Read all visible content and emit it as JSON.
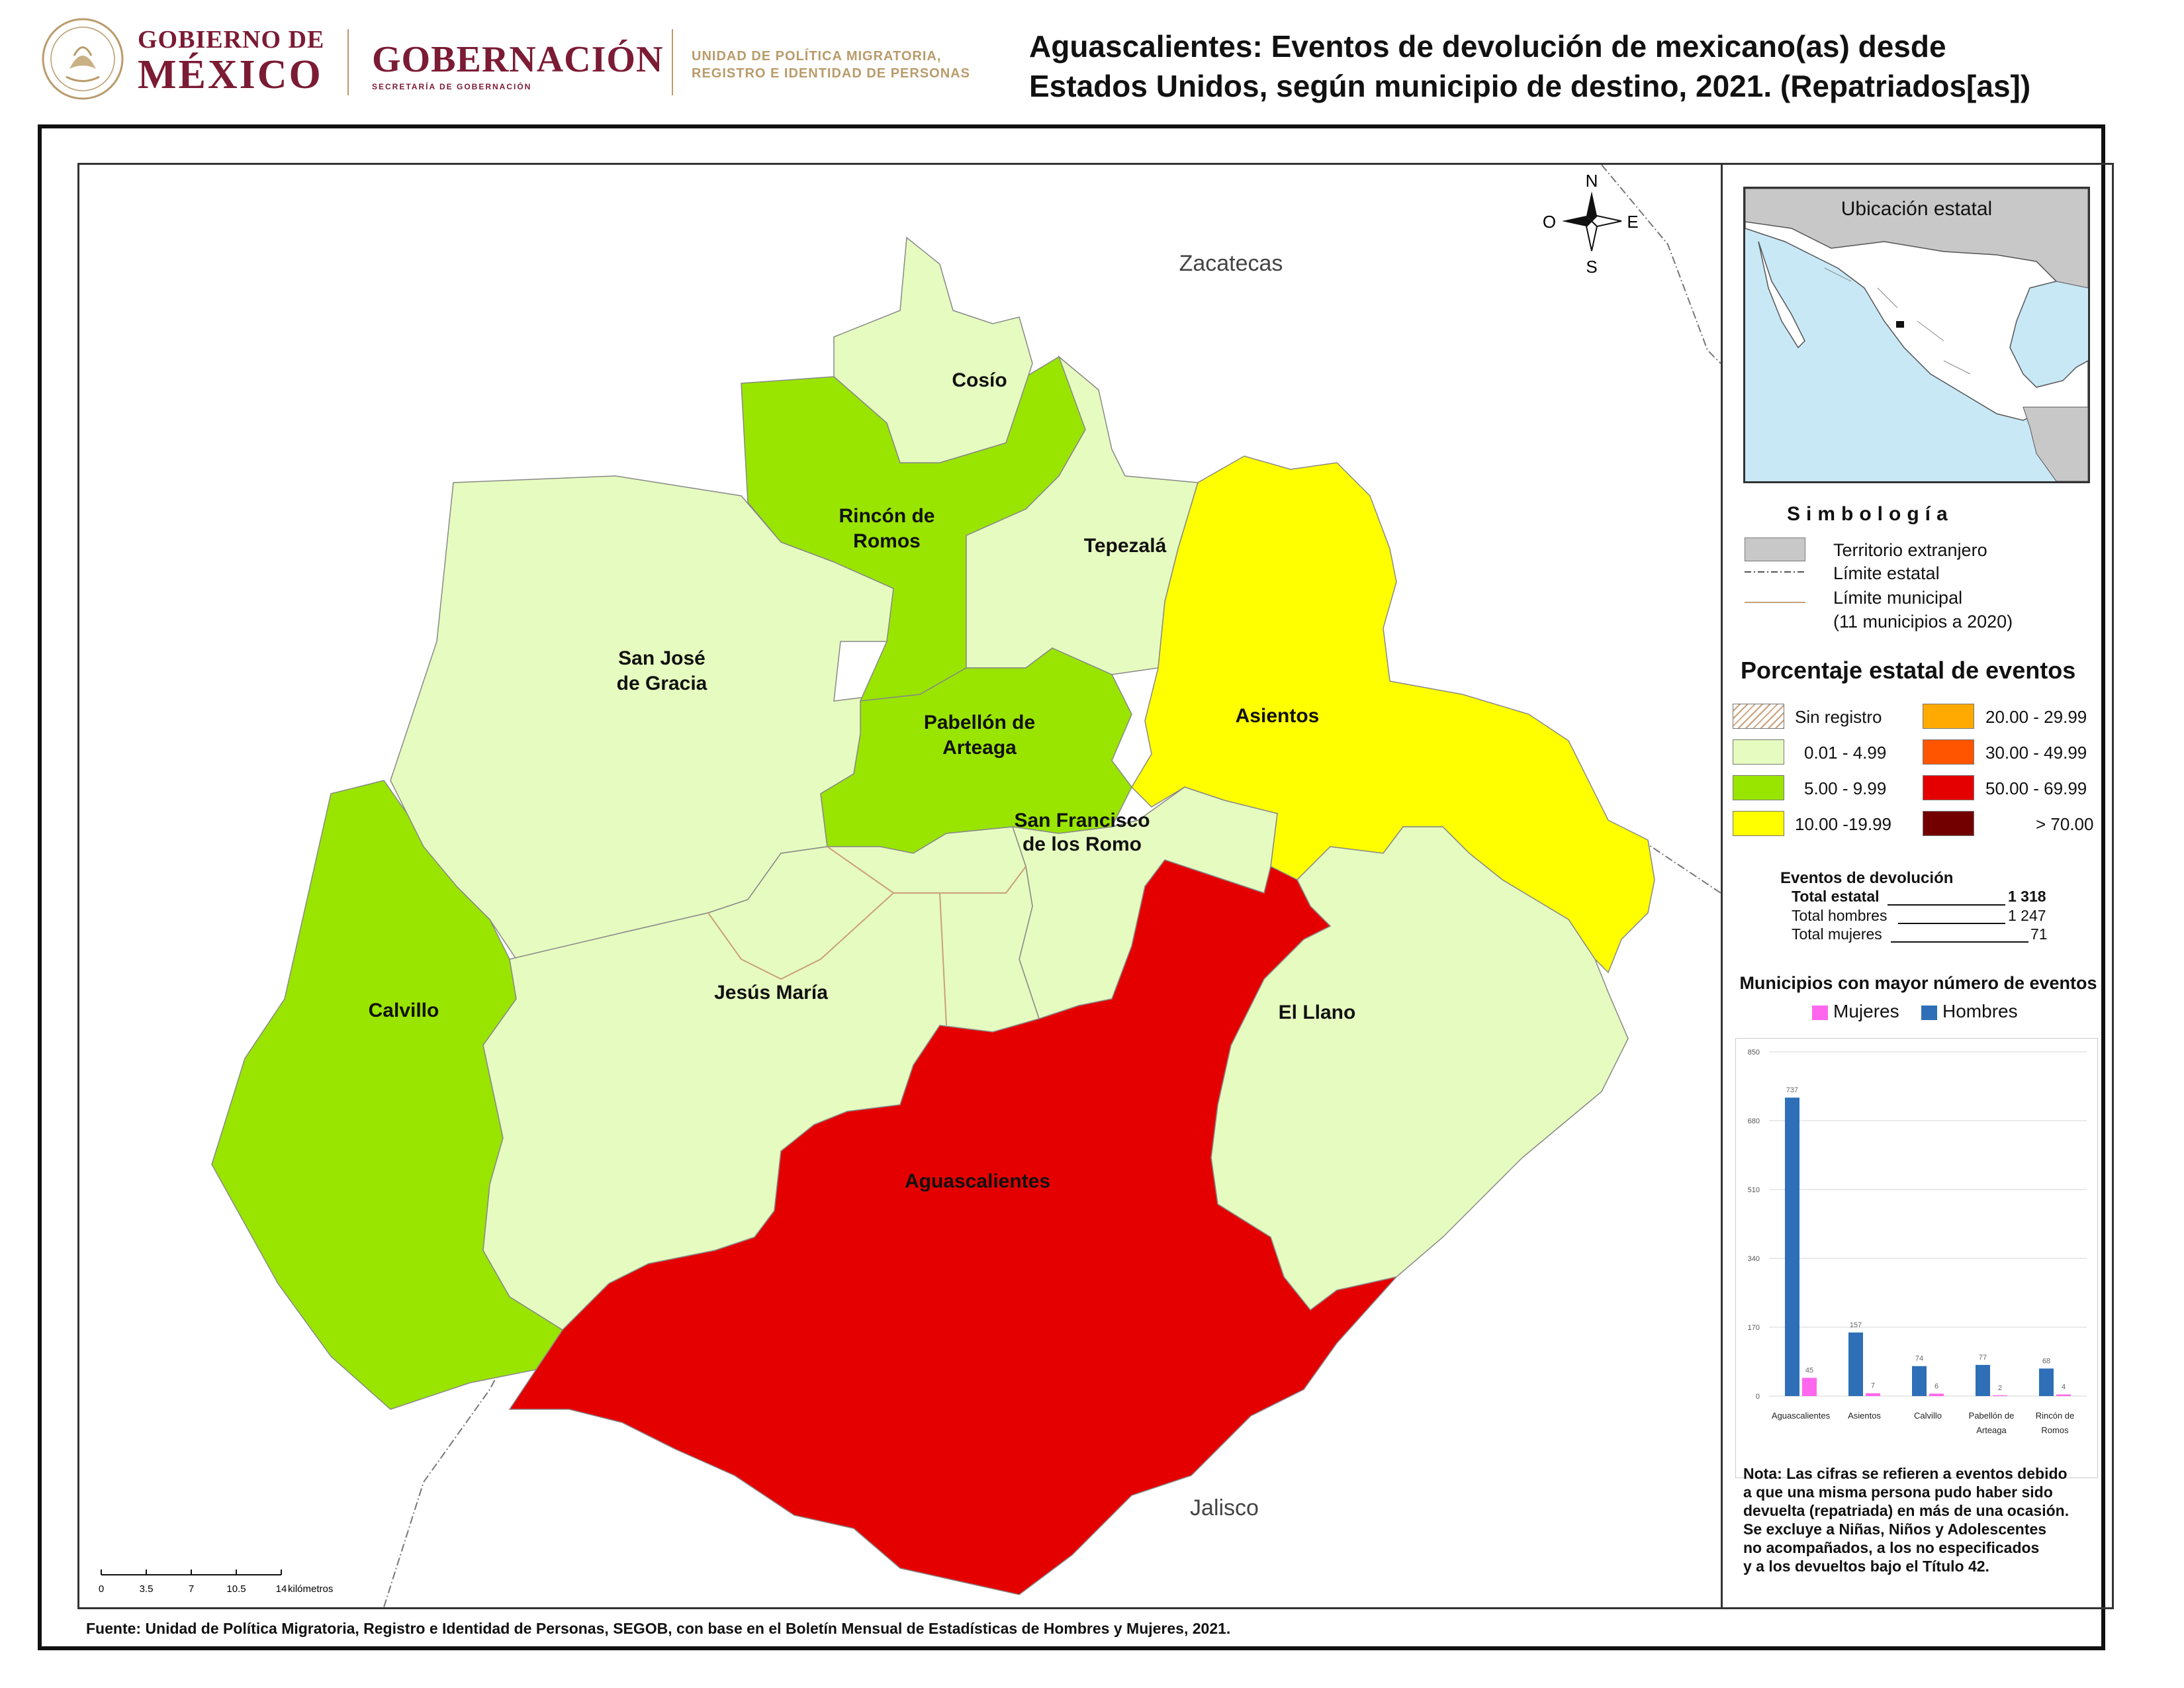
{
  "header": {
    "gob_line1": "GOBIERNO DE",
    "gob_line2": "MÉXICO",
    "gobernacion": "GOBERNACIÓN",
    "gobernacion_sub": "SECRETARÍA DE GOBERNACIÓN",
    "upm_line1": "UNIDAD DE POLÍTICA MIGRATORIA,",
    "upm_line2": "REGISTRO E IDENTIDAD DE PERSONAS",
    "title_line1": "Aguascalientes: Eventos de devolución de mexicano(as) desde",
    "title_line2": "Estados Unidos, según municipio de destino, 2021. (Repatriados[as])"
  },
  "map": {
    "neighbors": {
      "north": "Zacatecas",
      "south": "Jalisco"
    },
    "compass": {
      "n": "N",
      "s": "S",
      "e": "E",
      "w": "O"
    },
    "scale": {
      "ticks": [
        "0",
        "3.5",
        "7",
        "10.5",
        "14"
      ],
      "unit": "kilómetros"
    },
    "municipalities": [
      {
        "name": "Cosío",
        "class": "0.01 - 4.99",
        "color": "#e6fbbf"
      },
      {
        "name": "Rincón de Romos",
        "line1": "Rincón de",
        "line2": "Romos",
        "class": "5.00 - 9.99",
        "color": "#99e500"
      },
      {
        "name": "Tepezalá",
        "class": "0.01 - 4.99",
        "color": "#e6fbbf"
      },
      {
        "name": "San José de Gracia",
        "line1": "San José",
        "line2": "de Gracia",
        "class": "0.01 - 4.99",
        "color": "#e6fbbf"
      },
      {
        "name": "Asientos",
        "class": "10.00 -19.99",
        "color": "#ffff00"
      },
      {
        "name": "Pabellón de Arteaga",
        "line1": "Pabellón de",
        "line2": "Arteaga",
        "class": "5.00 - 9.99",
        "color": "#99e500"
      },
      {
        "name": "San Francisco de los Romo",
        "line1": "San Francisco",
        "line2": "de los Romo",
        "class": "0.01 - 4.99",
        "color": "#e6fbbf"
      },
      {
        "name": "Calvillo",
        "class": "5.00 - 9.99",
        "color": "#99e500"
      },
      {
        "name": "Jesús María",
        "class": "0.01 - 4.99",
        "color": "#e6fbbf"
      },
      {
        "name": "El Llano",
        "class": "0.01 - 4.99",
        "color": "#e6fbbf"
      },
      {
        "name": "Aguascalientes",
        "class": "50.00 - 69.99",
        "color": "#e50000"
      }
    ]
  },
  "legend": {
    "inset_title": "Ubicación estatal",
    "simbologia_title": "Simbología",
    "items": [
      {
        "label": "Territorio extranjero"
      },
      {
        "label": "Límite estatal"
      },
      {
        "label": "Límite municipal"
      },
      {
        "label": "(11 municipios a 2020)"
      }
    ],
    "pct_title": "Porcentaje estatal de eventos",
    "classes": [
      {
        "label": "Sin registro",
        "color": "hatch"
      },
      {
        "label": "0.01  - 4.99",
        "color": "#e6fbbf"
      },
      {
        "label": "5.00  - 9.99",
        "color": "#99e500"
      },
      {
        "label": "10.00 -19.99",
        "color": "#ffff00"
      },
      {
        "label": "20.00 - 29.99",
        "color": "#ffaa00"
      },
      {
        "label": "30.00 - 49.99",
        "color": "#ff5500"
      },
      {
        "label": "50.00 - 69.99",
        "color": "#e50000"
      },
      {
        "label": "> 70.00",
        "color": "#730000"
      }
    ],
    "eventos": {
      "title": "Eventos de devolución",
      "total_label": "Total estatal",
      "total_value": "1 318",
      "hombres_label": "Total hombres",
      "hombres_value": "1 247",
      "mujeres_label": "Total mujeres",
      "mujeres_value": "71"
    },
    "nota": [
      "Nota: Las cifras se refieren a eventos debido",
      "a que una misma persona pudo haber sido",
      "devuelta (repatriada) en más de una ocasión.",
      "Se excluye a Niñas, Niños y Adolescentes",
      "no acompañados, a los no especificados",
      "y a los devueltos bajo el Título 42."
    ]
  },
  "chart_data": {
    "type": "bar",
    "title": "Municipios con mayor número de eventos",
    "categories": [
      "Aguascalientes",
      "Asientos",
      "Calvillo",
      "Pabellón de Arteaga",
      "Rincón de Romos"
    ],
    "category_lines": [
      [
        "Aguascalientes"
      ],
      [
        "Asientos"
      ],
      [
        "Calvillo"
      ],
      [
        "Pabellón de",
        "Arteaga"
      ],
      [
        "Rincón de",
        "Romos"
      ]
    ],
    "series": [
      {
        "name": "Mujeres",
        "color": "#ff66ee",
        "values": [
          45,
          7,
          6,
          2,
          4
        ]
      },
      {
        "name": "Hombres",
        "color": "#2e6fb8",
        "values": [
          737,
          157,
          74,
          77,
          68
        ]
      }
    ],
    "yticks": [
      "0",
      "170",
      "340",
      "510",
      "680",
      "850"
    ],
    "ylim": [
      0,
      850
    ],
    "legend_position": "top"
  },
  "source": "Fuente: Unidad de Política Migratoria, Registro e Identidad de Personas, SEGOB, con base en el Boletín Mensual de Estadísticas de Hombres y Mujeres, 2021."
}
